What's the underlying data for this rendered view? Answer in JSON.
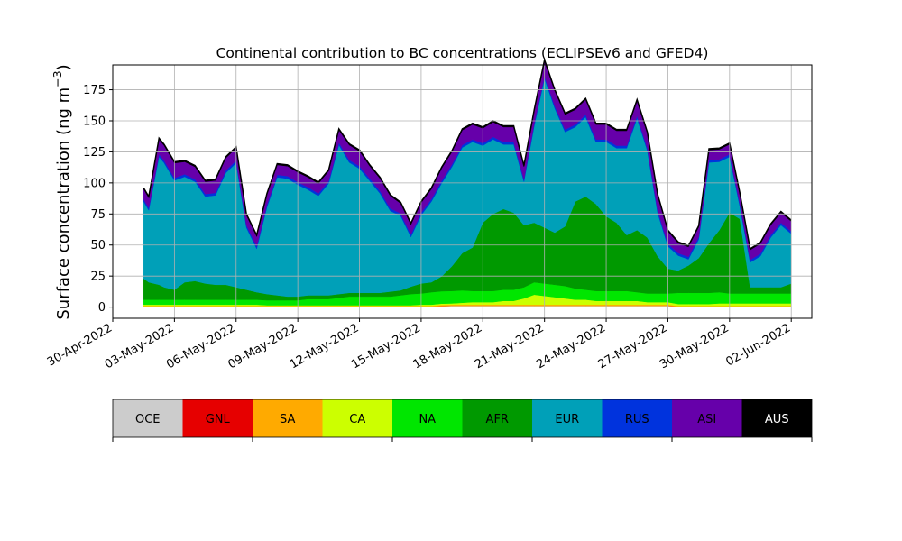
{
  "chart_data": {
    "type": "area",
    "stacked": true,
    "title": "Continental contribution to BC concentrations (ECLIPSEv6 and GFED4)",
    "ylabel_main": "Surface concentration (ng m",
    "ylabel_exp": "−3",
    "ylabel_close": ")",
    "xlabel": "",
    "ylim": [
      -9,
      195
    ],
    "xlim": [
      "2022-04-30",
      "2022-06-03"
    ],
    "yticks": [
      0,
      25,
      50,
      75,
      100,
      125,
      150,
      175
    ],
    "xticks": [
      {
        "date": "2022-04-30",
        "label": "30-Apr-2022"
      },
      {
        "date": "2022-05-03",
        "label": "03-May-2022"
      },
      {
        "date": "2022-05-06",
        "label": "06-May-2022"
      },
      {
        "date": "2022-05-09",
        "label": "09-May-2022"
      },
      {
        "date": "2022-05-12",
        "label": "12-May-2022"
      },
      {
        "date": "2022-05-15",
        "label": "15-May-2022"
      },
      {
        "date": "2022-05-18",
        "label": "18-May-2022"
      },
      {
        "date": "2022-05-21",
        "label": "21-May-2022"
      },
      {
        "date": "2022-05-24",
        "label": "24-May-2022"
      },
      {
        "date": "2022-05-27",
        "label": "27-May-2022"
      },
      {
        "date": "2022-05-30",
        "label": "30-May-2022"
      },
      {
        "date": "2022-06-02",
        "label": "02-Jun-2022"
      }
    ],
    "grid": true,
    "legend_placement": "below",
    "x": [
      "2022-05-01 12:00",
      "2022-05-01 18:00",
      "2022-05-02 06:00",
      "2022-05-02 12:00",
      "2022-05-03 00:00",
      "2022-05-03 12:00",
      "2022-05-04 00:00",
      "2022-05-04 12:00",
      "2022-05-05 00:00",
      "2022-05-05 12:00",
      "2022-05-06 00:00",
      "2022-05-06 12:00",
      "2022-05-07 00:00",
      "2022-05-07 12:00",
      "2022-05-08 00:00",
      "2022-05-08 12:00",
      "2022-05-09 00:00",
      "2022-05-09 12:00",
      "2022-05-10 00:00",
      "2022-05-10 12:00",
      "2022-05-11 00:00",
      "2022-05-11 12:00",
      "2022-05-12 00:00",
      "2022-05-12 12:00",
      "2022-05-13 00:00",
      "2022-05-13 12:00",
      "2022-05-14 00:00",
      "2022-05-14 12:00",
      "2022-05-15 00:00",
      "2022-05-15 12:00",
      "2022-05-16 00:00",
      "2022-05-16 12:00",
      "2022-05-17 00:00",
      "2022-05-17 12:00",
      "2022-05-18 00:00",
      "2022-05-18 12:00",
      "2022-05-19 00:00",
      "2022-05-19 12:00",
      "2022-05-20 00:00",
      "2022-05-20 12:00",
      "2022-05-21 00:00",
      "2022-05-21 12:00",
      "2022-05-22 00:00",
      "2022-05-22 12:00",
      "2022-05-23 00:00",
      "2022-05-23 12:00",
      "2022-05-24 00:00",
      "2022-05-24 12:00",
      "2022-05-25 00:00",
      "2022-05-25 12:00",
      "2022-05-26 00:00",
      "2022-05-26 12:00",
      "2022-05-27 00:00",
      "2022-05-27 12:00",
      "2022-05-28 00:00",
      "2022-05-28 12:00",
      "2022-05-29 00:00",
      "2022-05-29 12:00",
      "2022-05-30 00:00",
      "2022-05-30 12:00",
      "2022-05-31 00:00",
      "2022-05-31 12:00",
      "2022-06-01 00:00",
      "2022-06-01 12:00",
      "2022-06-02 00:00"
    ],
    "series": [
      {
        "name": "OCE",
        "color": "#cccccc",
        "values": [
          0.5,
          0.5,
          0.5,
          0.5,
          0.5,
          0.5,
          0.5,
          0.5,
          0.5,
          0.5,
          0.5,
          0.5,
          0.5,
          0.5,
          0.5,
          0.5,
          0.5,
          0.5,
          0.5,
          0.5,
          0.5,
          0.5,
          0.5,
          0.5,
          0.5,
          0.5,
          0.5,
          0.5,
          0.5,
          0.5,
          0.8,
          1,
          1,
          1,
          1,
          1,
          1,
          1,
          1,
          1,
          1,
          1,
          1,
          1,
          1,
          1,
          1,
          1,
          1,
          1,
          1,
          1,
          1,
          0.5,
          0.5,
          0.5,
          0.5,
          0.5,
          0.5,
          0.5,
          0.5,
          0.5,
          0.5,
          0.5,
          0.5
        ]
      },
      {
        "name": "GNL",
        "color": "#e60000",
        "values": [
          0,
          0,
          0,
          0,
          0,
          0,
          0,
          0,
          0,
          0,
          0,
          0,
          0,
          0,
          0,
          0,
          0,
          0,
          0,
          0,
          0,
          0,
          0,
          0,
          0,
          0,
          0,
          0,
          0,
          0,
          0,
          0,
          0,
          0,
          0,
          0,
          0,
          0,
          0,
          0,
          0,
          0,
          0,
          0,
          0,
          0,
          0,
          0,
          0,
          0,
          0,
          0,
          0,
          0,
          0,
          0,
          0,
          0,
          0,
          0,
          0,
          0,
          0,
          0,
          0
        ]
      },
      {
        "name": "SA",
        "color": "#ffaa00",
        "values": [
          0.5,
          0.5,
          0.5,
          0.5,
          0.5,
          0.5,
          0.5,
          0.5,
          0.5,
          0.5,
          0.5,
          0.5,
          0.5,
          0.5,
          0.5,
          0.5,
          0.5,
          0.5,
          0.5,
          0.5,
          0.5,
          0.5,
          0.5,
          0.5,
          0.5,
          0.5,
          0.5,
          0.5,
          0.5,
          0.5,
          1,
          1,
          1,
          1,
          1,
          1,
          1,
          1,
          1,
          1,
          1,
          1,
          1,
          1,
          1,
          1,
          1,
          1,
          1,
          1,
          1,
          1,
          1,
          0.5,
          0.5,
          0.5,
          0.5,
          0.5,
          0.5,
          0.5,
          0.5,
          0.5,
          0.5,
          0.5,
          0.5
        ]
      },
      {
        "name": "CA",
        "color": "#ccff00",
        "values": [
          1,
          1,
          1,
          1,
          1,
          1,
          1,
          1,
          1,
          1,
          1,
          1,
          1,
          0.5,
          0.5,
          0.5,
          0.5,
          0.5,
          0.5,
          0.5,
          0.5,
          0.5,
          0.5,
          0.5,
          0.5,
          0.5,
          0.5,
          0.5,
          1,
          1,
          1,
          1,
          1.5,
          2,
          2,
          2,
          3,
          3,
          5,
          8,
          7,
          6,
          5,
          4,
          4,
          3,
          3,
          3,
          3,
          3,
          2,
          2,
          2,
          1.5,
          1.5,
          1.5,
          1.5,
          2,
          2,
          2,
          2,
          2,
          2,
          2,
          2
        ]
      },
      {
        "name": "NA",
        "color": "#00e600",
        "values": [
          4,
          4,
          4,
          4,
          4,
          4,
          4,
          4,
          4,
          4,
          4,
          4,
          4,
          4,
          4,
          4,
          4,
          5,
          5,
          5,
          6,
          7,
          7,
          7,
          7,
          7,
          8,
          9,
          9,
          10,
          10,
          10,
          10,
          9,
          9,
          9,
          9,
          9,
          9,
          10,
          10,
          10,
          10,
          9,
          8,
          8,
          8,
          8,
          8,
          7,
          7,
          7,
          7,
          9,
          9,
          9,
          9,
          9,
          8,
          8,
          8,
          8,
          8,
          8,
          8
        ]
      },
      {
        "name": "AFR",
        "color": "#009900",
        "values": [
          17,
          14,
          12,
          10,
          8,
          14,
          15,
          13,
          12,
          12,
          10,
          8,
          6,
          5,
          4,
          3,
          3,
          3,
          3,
          3,
          3,
          3,
          3,
          3,
          3,
          4,
          4,
          6,
          8,
          8,
          12,
          20,
          30,
          35,
          55,
          62,
          65,
          62,
          50,
          48,
          45,
          42,
          48,
          70,
          75,
          70,
          60,
          55,
          45,
          50,
          45,
          30,
          20,
          18,
          22,
          28,
          40,
          50,
          65,
          60,
          5,
          5,
          5,
          5,
          8
        ]
      },
      {
        "name": "EUR",
        "color": "#00a0b8",
        "values": [
          62,
          58,
          103,
          100,
          88,
          85,
          80,
          70,
          72,
          90,
          100,
          50,
          35,
          70,
          95,
          95,
          90,
          85,
          80,
          90,
          120,
          105,
          100,
          90,
          80,
          65,
          60,
          40,
          55,
          65,
          75,
          80,
          85,
          85,
          62,
          60,
          52,
          55,
          35,
          78,
          120,
          100,
          76,
          60,
          64,
          50,
          60,
          60,
          70,
          90,
          70,
          35,
          18,
          12,
          5,
          15,
          65,
          55,
          45,
          10,
          20,
          25,
          40,
          50,
          40
        ]
      },
      {
        "name": "RUS",
        "color": "#0033dd",
        "values": [
          2,
          2,
          2,
          2,
          2,
          2,
          2,
          2,
          2,
          2,
          2,
          2,
          2,
          2,
          2,
          2,
          2,
          2,
          2,
          2,
          2,
          2,
          2,
          2,
          2,
          2,
          2,
          2,
          2,
          2,
          2,
          2,
          2,
          2,
          2,
          2,
          2,
          2,
          2,
          2,
          2,
          2,
          2,
          2,
          2,
          2,
          2,
          2,
          2,
          2,
          2,
          2,
          2,
          2,
          2,
          2,
          2,
          2,
          2,
          2,
          2,
          2,
          2,
          2,
          2
        ]
      },
      {
        "name": "ASI",
        "color": "#6600aa",
        "values": [
          8,
          8,
          12,
          12,
          12,
          10,
          10,
          10,
          10,
          10,
          10,
          8,
          8,
          8,
          8,
          8,
          8,
          8,
          8,
          8,
          10,
          12,
          12,
          10,
          10,
          10,
          8,
          8,
          8,
          8,
          10,
          10,
          12,
          12,
          12,
          12,
          12,
          12,
          10,
          10,
          12,
          12,
          12,
          12,
          12,
          12,
          12,
          12,
          12,
          12,
          12,
          12,
          10,
          8,
          8,
          8,
          8,
          8,
          8,
          8,
          8,
          8,
          8,
          8,
          8
        ]
      },
      {
        "name": "AUS",
        "color": "#000000",
        "values": [
          1,
          1,
          1,
          1,
          1,
          1,
          1,
          1,
          1,
          1,
          1,
          1,
          1,
          1,
          1,
          1,
          1,
          1,
          1,
          1,
          1,
          1,
          1,
          1,
          1,
          1,
          1,
          1,
          1,
          1,
          1,
          1,
          1,
          1,
          1,
          1,
          1,
          1,
          1,
          1,
          1,
          1,
          1,
          1,
          1,
          1,
          1,
          1,
          1,
          1,
          1,
          1,
          1,
          1,
          1,
          1,
          1,
          1,
          1,
          1,
          1,
          1,
          1,
          1,
          1
        ]
      }
    ]
  }
}
